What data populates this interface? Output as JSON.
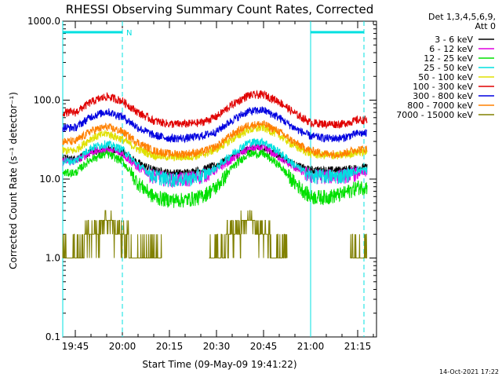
{
  "chart_data": {
    "type": "line",
    "title": "RHESSI Observing Summary Count Rates, Corrected",
    "xlabel": "Start Time (09-May-09 19:41:22)",
    "ylabel": "Corrected Count Rate (s⁻¹ detector⁻¹)",
    "yscale": "log",
    "ylim": [
      0.1,
      1000
    ],
    "xlim": [
      "19:41",
      "21:21"
    ],
    "x_ticks": [
      "19:45",
      "20:00",
      "20:15",
      "20:30",
      "20:45",
      "21:00",
      "21:15"
    ],
    "y_ticks": [
      "0.1",
      "1.0",
      "10.0",
      "100.0",
      "1000.0"
    ],
    "legend_header": [
      "Det 1,3,4,5,6,9,",
      "Att 0"
    ],
    "legend_position": "right",
    "timestamp": "14-Oct-2021 17:22",
    "night_flag_label": "N",
    "night_intervals": [
      [
        "19:41",
        "20:00"
      ],
      [
        "21:00",
        "21:17"
      ]
    ],
    "x": [
      "19:45",
      "19:50",
      "19:55",
      "20:00",
      "20:05",
      "20:10",
      "20:15",
      "20:20",
      "20:25",
      "20:30",
      "20:35",
      "20:40",
      "20:45",
      "20:50",
      "20:55",
      "21:00",
      "21:05",
      "21:10",
      "21:15"
    ],
    "series": [
      {
        "name": "3 - 6 keV",
        "color": "#000000",
        "values": [
          18,
          22,
          24,
          22,
          16,
          13,
          12,
          12,
          13,
          15,
          19,
          24,
          25,
          20,
          15,
          13,
          13,
          13,
          14
        ]
      },
      {
        "name": "6 - 12 keV",
        "color": "#e000e0",
        "values": [
          17,
          22,
          24,
          21,
          14,
          11,
          10,
          10,
          11,
          13,
          18,
          24,
          25,
          19,
          14,
          11,
          11,
          11,
          12
        ]
      },
      {
        "name": "12 - 25 keV",
        "color": "#00e000",
        "values": [
          12,
          18,
          21,
          17,
          9,
          6,
          5.5,
          5.5,
          6,
          8,
          14,
          21,
          21,
          15,
          9,
          6,
          6,
          6.5,
          8
        ]
      },
      {
        "name": "25 - 50 keV",
        "color": "#00e0e0",
        "values": [
          17,
          25,
          28,
          24,
          15,
          11,
          10,
          10,
          11,
          14,
          21,
          29,
          30,
          22,
          15,
          11,
          11,
          11,
          13
        ]
      },
      {
        "name": "50 - 100 keV",
        "color": "#e0e000",
        "values": [
          23,
          33,
          38,
          32,
          24,
          20,
          19,
          19,
          20,
          24,
          32,
          42,
          45,
          36,
          26,
          21,
          20,
          20,
          22
        ]
      },
      {
        "name": "100 - 300 keV",
        "color": "#e00000",
        "values": [
          70,
          95,
          112,
          98,
          70,
          55,
          50,
          50,
          52,
          62,
          88,
          115,
          118,
          96,
          68,
          52,
          50,
          50,
          56
        ]
      },
      {
        "name": "300 - 800 keV",
        "color": "#0000e0",
        "values": [
          45,
          62,
          72,
          62,
          45,
          36,
          33,
          33,
          35,
          40,
          56,
          72,
          75,
          60,
          44,
          35,
          33,
          33,
          38
        ]
      },
      {
        "name": "800 - 7000 keV",
        "color": "#ff8000",
        "values": [
          30,
          41,
          46,
          40,
          29,
          23,
          21,
          21,
          22,
          26,
          37,
          48,
          50,
          40,
          29,
          23,
          21,
          21,
          24
        ]
      },
      {
        "name": "7000 - 15000 keV",
        "color": "#808000",
        "values": [
          1.0,
          2.0,
          3.0,
          2.0,
          1.0,
          1.0,
          null,
          null,
          null,
          1.0,
          2.0,
          3.0,
          2.0,
          1.0,
          null,
          null,
          null,
          null,
          1.0
        ]
      }
    ]
  }
}
